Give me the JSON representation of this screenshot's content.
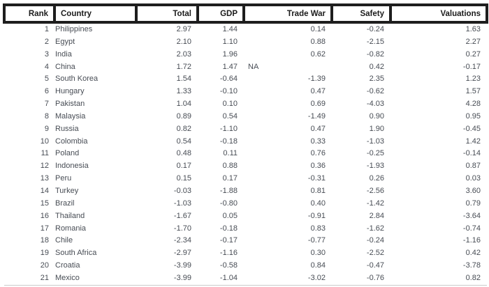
{
  "colors": {
    "header_text": "#1b1b1b",
    "header_border": "#1e1e1e",
    "body_text": "#474c54",
    "bottom_rule": "#cacaca",
    "background": "#ffffff"
  },
  "chart_data": {
    "type": "table",
    "title": "",
    "columns": [
      {
        "key": "rank",
        "label": "Rank",
        "align": "right"
      },
      {
        "key": "country",
        "label": "Country",
        "align": "left"
      },
      {
        "key": "total",
        "label": "Total",
        "align": "right"
      },
      {
        "key": "gdp",
        "label": "GDP",
        "align": "right"
      },
      {
        "key": "trade_war",
        "label": "Trade War",
        "align": "right"
      },
      {
        "key": "safety",
        "label": "Safety",
        "align": "right"
      },
      {
        "key": "valuations",
        "label": "Valuations",
        "align": "right"
      }
    ],
    "rows": [
      {
        "rank": "1",
        "country": "Philippines",
        "total": "2.97",
        "gdp": "1.44",
        "trade_war": "0.14",
        "safety": "-0.24",
        "valuations": "1.63"
      },
      {
        "rank": "2",
        "country": "Egypt",
        "total": "2.10",
        "gdp": "1.10",
        "trade_war": "0.88",
        "safety": "-2.15",
        "valuations": "2.27"
      },
      {
        "rank": "3",
        "country": "India",
        "total": "2.03",
        "gdp": "1.96",
        "trade_war": "0.62",
        "safety": "-0.82",
        "valuations": "0.27"
      },
      {
        "rank": "4",
        "country": "China",
        "total": "1.72",
        "gdp": "1.47",
        "trade_war": "NA",
        "safety": "0.42",
        "valuations": "-0.17"
      },
      {
        "rank": "5",
        "country": "South Korea",
        "total": "1.54",
        "gdp": "-0.64",
        "trade_war": "-1.39",
        "safety": "2.35",
        "valuations": "1.23"
      },
      {
        "rank": "6",
        "country": "Hungary",
        "total": "1.33",
        "gdp": "-0.10",
        "trade_war": "0.47",
        "safety": "-0.62",
        "valuations": "1.57"
      },
      {
        "rank": "7",
        "country": "Pakistan",
        "total": "1.04",
        "gdp": "0.10",
        "trade_war": "0.69",
        "safety": "-4.03",
        "valuations": "4.28"
      },
      {
        "rank": "8",
        "country": "Malaysia",
        "total": "0.89",
        "gdp": "0.54",
        "trade_war": "-1.49",
        "safety": "0.90",
        "valuations": "0.95"
      },
      {
        "rank": "9",
        "country": "Russia",
        "total": "0.82",
        "gdp": "-1.10",
        "trade_war": "0.47",
        "safety": "1.90",
        "valuations": "-0.45"
      },
      {
        "rank": "10",
        "country": "Colombia",
        "total": "0.54",
        "gdp": "-0.18",
        "trade_war": "0.33",
        "safety": "-1.03",
        "valuations": "1.42"
      },
      {
        "rank": "11",
        "country": "Poland",
        "total": "0.48",
        "gdp": "0.11",
        "trade_war": "0.76",
        "safety": "-0.25",
        "valuations": "-0.14"
      },
      {
        "rank": "12",
        "country": "Indonesia",
        "total": "0.17",
        "gdp": "0.88",
        "trade_war": "0.36",
        "safety": "-1.93",
        "valuations": "0.87"
      },
      {
        "rank": "13",
        "country": "Peru",
        "total": "0.15",
        "gdp": "0.17",
        "trade_war": "-0.31",
        "safety": "0.26",
        "valuations": "0.03"
      },
      {
        "rank": "14",
        "country": "Turkey",
        "total": "-0.03",
        "gdp": "-1.88",
        "trade_war": "0.81",
        "safety": "-2.56",
        "valuations": "3.60"
      },
      {
        "rank": "15",
        "country": "Brazil",
        "total": "-1.03",
        "gdp": "-0.80",
        "trade_war": "0.40",
        "safety": "-1.42",
        "valuations": "0.79"
      },
      {
        "rank": "16",
        "country": "Thailand",
        "total": "-1.67",
        "gdp": "0.05",
        "trade_war": "-0.91",
        "safety": "2.84",
        "valuations": "-3.64"
      },
      {
        "rank": "17",
        "country": "Romania",
        "total": "-1.70",
        "gdp": "-0.18",
        "trade_war": "0.83",
        "safety": "-1.62",
        "valuations": "-0.74"
      },
      {
        "rank": "18",
        "country": "Chile",
        "total": "-2.34",
        "gdp": "-0.17",
        "trade_war": "-0.77",
        "safety": "-0.24",
        "valuations": "-1.16"
      },
      {
        "rank": "19",
        "country": "South Africa",
        "total": "-2.97",
        "gdp": "-1.16",
        "trade_war": "0.30",
        "safety": "-2.52",
        "valuations": "0.42"
      },
      {
        "rank": "20",
        "country": "Croatia",
        "total": "-3.99",
        "gdp": "-0.58",
        "trade_war": "0.84",
        "safety": "-0.47",
        "valuations": "-3.78"
      },
      {
        "rank": "21",
        "country": "Mexico",
        "total": "-3.99",
        "gdp": "-1.04",
        "trade_war": "-3.02",
        "safety": "-0.76",
        "valuations": "0.82"
      }
    ]
  }
}
